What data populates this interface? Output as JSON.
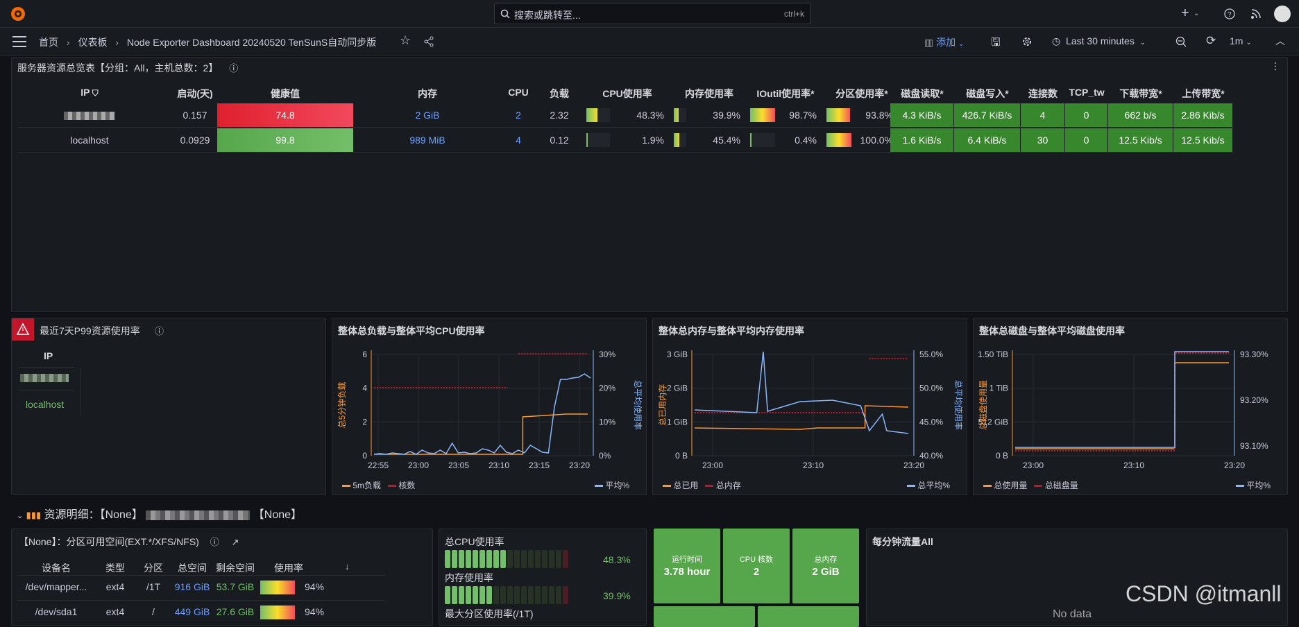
{
  "topbar": {
    "search_placeholder": "搜索或跳转至...",
    "search_shortcut": "ctrl+k"
  },
  "nav": {
    "breadcrumb": [
      "首页",
      "仪表板",
      "Node Exporter Dashboard 20240520 TenSunS自动同步版"
    ],
    "add_label": "添加",
    "time_range": "Last 30 minutes",
    "refresh": "1m"
  },
  "overview": {
    "title": "服务器资源总览表【分组：All，主机总数：2】",
    "headers": [
      "IP",
      "启动(天)",
      "健康值",
      "内存",
      "CPU",
      "负载",
      "CPU使用率",
      "内存使用率",
      "IOutil使用率*",
      "分区使用率*",
      "磁盘读取*",
      "磁盘写入*",
      "连接数",
      "TCP_tw",
      "下载带宽*",
      "上传带宽*"
    ],
    "rows": [
      {
        "ip": "",
        "uptime": "0.157",
        "health": "74.8",
        "memory": "2 GiB",
        "cpu": "2",
        "load": "2.32",
        "cpu_pct": "48.3%",
        "mem_pct": "39.9%",
        "io_pct": "98.7%",
        "part_pct": "93.8%",
        "disk_read": "4.3 KiB/s",
        "disk_write": "426.7 KiB/s",
        "conns": "4",
        "tcp_tw": "0",
        "down": "662 b/s",
        "up": "2.86 Kib/s",
        "cpu_fill": 0.48,
        "mem_fill": 0.4,
        "io_fill": 0.99,
        "part_fill": 0.94
      },
      {
        "ip": "localhost",
        "uptime": "0.0929",
        "health": "99.8",
        "memory": "989 MiB",
        "cpu": "4",
        "load": "0.12",
        "cpu_pct": "1.9%",
        "mem_pct": "45.4%",
        "io_pct": "0.4%",
        "part_pct": "100.0%",
        "disk_read": "1.6 KiB/s",
        "disk_write": "6.4 KiB/s",
        "conns": "30",
        "tcp_tw": "0",
        "down": "12.5 Kib/s",
        "up": "12.5 Kib/s",
        "cpu_fill": 0.02,
        "mem_fill": 0.45,
        "io_fill": 0.004,
        "part_fill": 1.0
      }
    ]
  },
  "p99": {
    "title": "最近7天P99资源使用率",
    "header": "IP",
    "rows": [
      "",
      "localhost"
    ]
  },
  "chart1": {
    "title": "整体总负载与整体平均CPU使用率",
    "yl_label": "总5分钟负载",
    "yr_label": "总平均使用率",
    "xt": [
      "22:55",
      "23:00",
      "23:05",
      "23:10",
      "23:15",
      "23:20"
    ],
    "ylt": [
      "0",
      "2",
      "4",
      "6"
    ],
    "yrt": [
      "0%",
      "10%",
      "20%",
      "30%"
    ],
    "legend": [
      "5m负载",
      "核数",
      "平均%"
    ]
  },
  "chart2": {
    "title": "整体总内存与整体平均内存使用率",
    "yl_label": "总已用内存",
    "yr_label": "总平均使用率",
    "xt": [
      "23:00",
      "23:10",
      "23:20"
    ],
    "ylt": [
      "0 B",
      "1 GiB",
      "2 GiB",
      "3 GiB"
    ],
    "yrt": [
      "40.0%",
      "45.0%",
      "50.0%",
      "55.0%"
    ],
    "legend": [
      "总已用",
      "总内存",
      "总平均%"
    ]
  },
  "chart3": {
    "title": "整体总磁盘与整体平均磁盘使用率",
    "yl_label": "总磁盘使用量",
    "xt": [
      "23:00",
      "23:10",
      "23:20"
    ],
    "ylt": [
      "0 B",
      "512 GiB",
      "1 TiB",
      "1.50 TiB"
    ],
    "yrt": [
      "93.10%",
      "93.20%",
      "93.30%"
    ],
    "legend": [
      "总使用量",
      "总磁盘量",
      "平均%"
    ]
  },
  "row_header": {
    "label": "资源明细：【None】",
    "suffix": "【None】"
  },
  "fs": {
    "title": "【None】：分区可用空间(EXT.*/XFS/NFS)",
    "headers": [
      "设备名",
      "类型",
      "分区",
      "总空间",
      "剩余空间",
      "使用率"
    ],
    "rows": [
      {
        "dev": "/dev/mapper...",
        "type": "ext4",
        "mount": "/1T",
        "total": "916 GiB",
        "free": "53.7 GiB",
        "usage": "94%"
      },
      {
        "dev": "/dev/sda1",
        "type": "ext4",
        "mount": "/",
        "total": "449 GiB",
        "free": "27.6 GiB",
        "usage": "94%"
      }
    ]
  },
  "gauges": [
    {
      "label": "总CPU使用率",
      "value": "48.3%",
      "fill": 0.483
    },
    {
      "label": "内存使用率",
      "value": "39.9%",
      "fill": 0.399
    },
    {
      "label": "最大分区使用率(/1T)"
    }
  ],
  "stats": [
    {
      "label": "运行时间",
      "value": "3.78 hour"
    },
    {
      "label": "CPU 核数",
      "value": "2"
    },
    {
      "label": "总内存",
      "value": "2 GiB"
    }
  ],
  "traffic": {
    "title": "每分钟流量All",
    "nodata": "No data"
  },
  "watermark": "CSDN @itmanll",
  "colors": {
    "green": "#37872d",
    "red": "#f2495c",
    "orange": "#ff9830",
    "blue": "#8ab8ff",
    "darkred": "#c4162a"
  }
}
